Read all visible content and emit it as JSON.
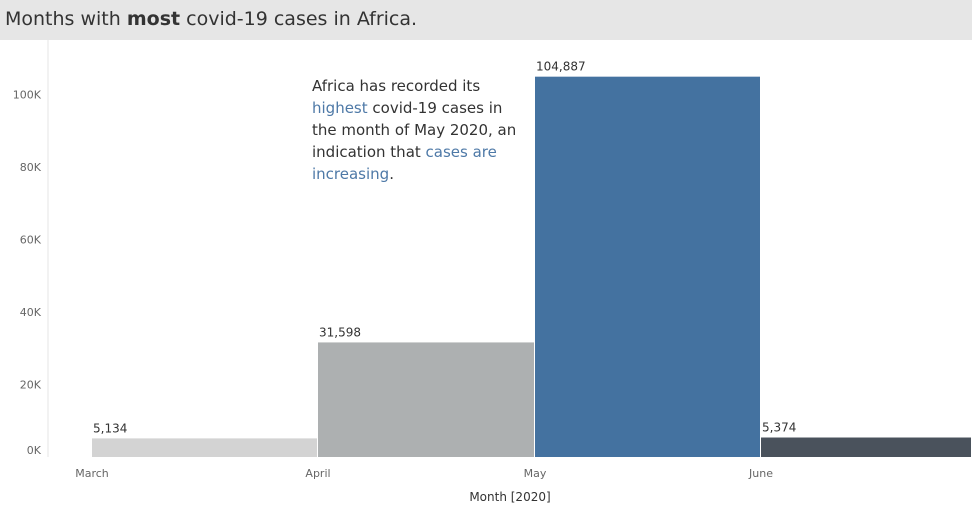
{
  "title": {
    "prefix": "Months with ",
    "emphasis": "most",
    "suffix": " covid-19 cases in Africa."
  },
  "annotation": {
    "t1": "Africa has recorded its ",
    "h1": "highest",
    "t2": " covid-19 cases in the month of May 2020, an indication that ",
    "h2": "cases are increasing",
    "t3": "."
  },
  "chart_data": {
    "type": "bar",
    "categories": [
      "March",
      "April",
      "May",
      "June"
    ],
    "values": [
      5134,
      31598,
      104887,
      5374
    ],
    "value_labels": [
      "5,134",
      "31,598",
      "104,887",
      "5,374"
    ],
    "colors": [
      "#d3d3d3",
      "#adb0b1",
      "#4472a0",
      "#4a525c"
    ],
    "xlabel": "Month [2020]",
    "ylabel": "",
    "ylim": [
      0,
      115000
    ],
    "yticks": [
      0,
      20000,
      40000,
      60000,
      80000,
      100000
    ],
    "ytick_labels": [
      "0K",
      "20K",
      "40K",
      "60K",
      "80K",
      "100K"
    ],
    "grid": false
  }
}
